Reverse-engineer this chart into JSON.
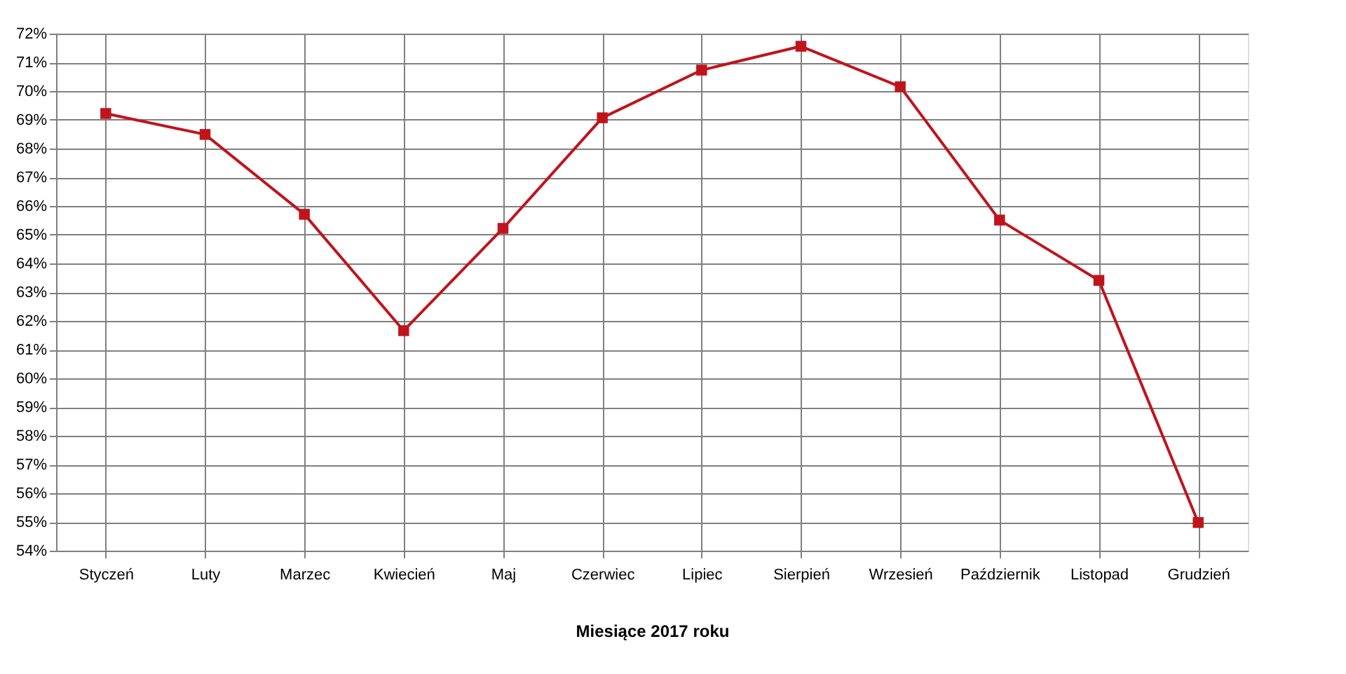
{
  "chart_data": {
    "type": "line",
    "xlabel": "Miesiące 2017  roku",
    "categories": [
      "Styczeń",
      "Luty",
      "Marzec",
      "Kwiecień",
      "Maj",
      "Czerwiec",
      "Lipiec",
      "Sierpień",
      "Wrzesień",
      "Październik",
      "Listopad",
      "Grudzień"
    ],
    "series": [
      {
        "color": "#c0141c",
        "values": [
          69.22,
          68.49,
          65.71,
          61.66,
          65.22,
          69.07,
          70.73,
          71.56,
          70.15,
          65.51,
          63.41,
          54.98
        ]
      }
    ],
    "ylim": [
      54,
      72
    ],
    "yticks": [
      {
        "value": 54,
        "label": "54%"
      },
      {
        "value": 55,
        "label": "55%"
      },
      {
        "value": 56,
        "label": "56%"
      },
      {
        "value": 57,
        "label": "57%"
      },
      {
        "value": 58,
        "label": "58%"
      },
      {
        "value": 59,
        "label": "59%"
      },
      {
        "value": 60,
        "label": "60%"
      },
      {
        "value": 61,
        "label": "61%"
      },
      {
        "value": 62,
        "label": "62%"
      },
      {
        "value": 63,
        "label": "63%"
      },
      {
        "value": 64,
        "label": "64%"
      },
      {
        "value": 65,
        "label": "65%"
      },
      {
        "value": 66,
        "label": "66%"
      },
      {
        "value": 67,
        "label": "67%"
      },
      {
        "value": 68,
        "label": "68%"
      },
      {
        "value": 69,
        "label": "69%"
      },
      {
        "value": 70,
        "label": "70%"
      },
      {
        "value": 71,
        "label": "71%"
      },
      {
        "value": 72,
        "label": "72%"
      }
    ],
    "grid": true,
    "marker": "square",
    "line_style": "solid"
  }
}
